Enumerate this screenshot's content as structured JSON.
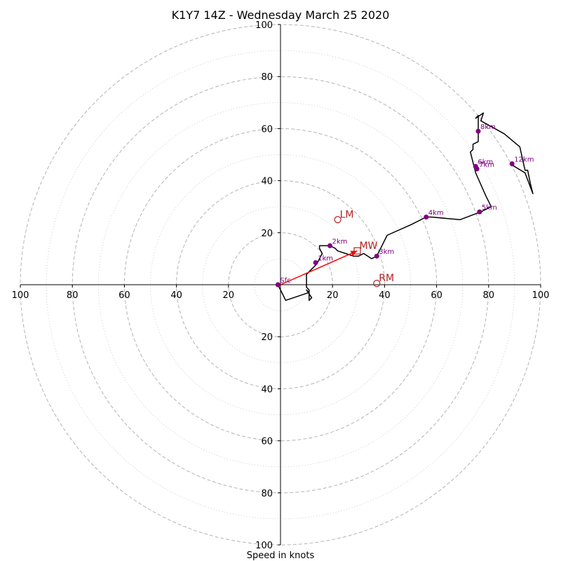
{
  "chart_data": {
    "type": "hodograph",
    "title": "K1Y7 14Z - Wednesday March 25 2020",
    "xlabel": "Speed in knots",
    "rmax": 100,
    "ring_labels": [
      "20",
      "40",
      "60",
      "80",
      "100"
    ],
    "x_tick_labels": [
      "100",
      "80",
      "60",
      "40",
      "20",
      "20",
      "40",
      "60",
      "80",
      "100"
    ],
    "y_tick_labels_upper": [
      "20",
      "40",
      "60",
      "80",
      "100"
    ],
    "y_tick_labels_lower": [
      "20",
      "40",
      "60",
      "80",
      "100"
    ],
    "colors": {
      "trace": "#000000",
      "height_marker": "#800080",
      "motion": "#b22222",
      "mean_wind_vector": "#ff0000",
      "grid_major": "#b3b3b3",
      "grid_minor": "#cccccc"
    },
    "trace": [
      [
        -1,
        0
      ],
      [
        2,
        -6
      ],
      [
        8,
        -4
      ],
      [
        11,
        -3
      ],
      [
        10,
        -2
      ],
      [
        12,
        -5
      ],
      [
        11,
        -6
      ],
      [
        11,
        -2
      ],
      [
        10,
        -1
      ],
      [
        10,
        2
      ],
      [
        10,
        4
      ],
      [
        12,
        6
      ],
      [
        14,
        8
      ],
      [
        15,
        10
      ],
      [
        16,
        12
      ],
      [
        15,
        14
      ],
      [
        15,
        15
      ],
      [
        19,
        15
      ],
      [
        21,
        14
      ],
      [
        22,
        13
      ],
      [
        25,
        12
      ],
      [
        28,
        11
      ],
      [
        30,
        11
      ],
      [
        32,
        12
      ],
      [
        35,
        10
      ],
      [
        37,
        11
      ],
      [
        41,
        19
      ],
      [
        50,
        23
      ],
      [
        56,
        26
      ],
      [
        58,
        26
      ],
      [
        69,
        25
      ],
      [
        77,
        28
      ],
      [
        81,
        30
      ],
      [
        79,
        34
      ],
      [
        75,
        43
      ],
      [
        74,
        47
      ],
      [
        73,
        51
      ],
      [
        74,
        52
      ],
      [
        74,
        54
      ],
      [
        76,
        55
      ],
      [
        76,
        58
      ],
      [
        76,
        62
      ],
      [
        76,
        65
      ],
      [
        75,
        64
      ],
      [
        78,
        66
      ],
      [
        77,
        63
      ],
      [
        86,
        58
      ],
      [
        92,
        53
      ],
      [
        94,
        44
      ],
      [
        95,
        44
      ],
      [
        96,
        39
      ],
      [
        97,
        35
      ],
      [
        94,
        43
      ],
      [
        89,
        46
      ]
    ],
    "height_points": [
      {
        "label": "Sfc",
        "u": -1,
        "v": 0
      },
      {
        "label": "1km",
        "u": 13.5,
        "v": 8.5
      },
      {
        "label": "2km",
        "u": 19,
        "v": 15
      },
      {
        "label": "3km",
        "u": 37,
        "v": 11
      },
      {
        "label": "4km",
        "u": 56,
        "v": 26
      },
      {
        "label": "5km",
        "u": 76.5,
        "v": 28
      },
      {
        "label": "6km",
        "u": 75,
        "v": 45.5
      },
      {
        "label": "7km",
        "u": 75.5,
        "v": 44.5
      },
      {
        "label": "8km",
        "u": 76,
        "v": 59
      },
      {
        "label": "12km",
        "u": 89,
        "v": 46.5
      }
    ],
    "motions": [
      {
        "label": "LM",
        "u": 22,
        "v": 25,
        "marker": "circle"
      },
      {
        "label": "MW",
        "u": 29.5,
        "v": 13,
        "marker": "square"
      },
      {
        "label": "RM",
        "u": 37,
        "v": 0.5,
        "marker": "circle"
      }
    ],
    "mean_wind_vector": {
      "u_from": 0,
      "v_from": 0,
      "u_to": 29.5,
      "v_to": 13
    }
  }
}
